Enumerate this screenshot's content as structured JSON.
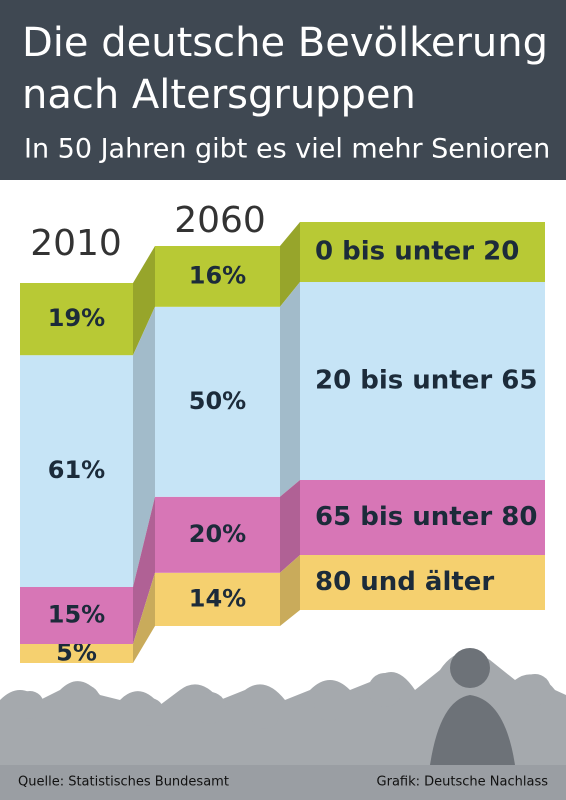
{
  "chart_data": {
    "type": "stacked-bar",
    "title": [
      "Die deutsche Bevölkerung",
      "nach Altersgruppen"
    ],
    "subtitle": "In 50 Jahren gibt es viel mehr Senioren",
    "categories": [
      "2010",
      "2060"
    ],
    "series": [
      {
        "name": "0 bis unter 20",
        "color": "#b8c935",
        "values": [
          19,
          16
        ],
        "value_labels": [
          "19%",
          "16%"
        ]
      },
      {
        "name": "20 bis unter 65",
        "color": "#c6e4f6",
        "values": [
          61,
          50
        ],
        "value_labels": [
          "61%",
          "50%"
        ]
      },
      {
        "name": "65 bis unter 80",
        "color": "#d776b6",
        "values": [
          15,
          20
        ],
        "value_labels": [
          "15%",
          "20%"
        ]
      },
      {
        "name": "80 und älter",
        "color": "#f5d06f",
        "values": [
          5,
          14
        ],
        "value_labels": [
          "5%",
          "14%"
        ]
      }
    ],
    "source": "Quelle: Statistisches Bundesamt",
    "credit": "Grafik: Deutsche Nachlass"
  }
}
